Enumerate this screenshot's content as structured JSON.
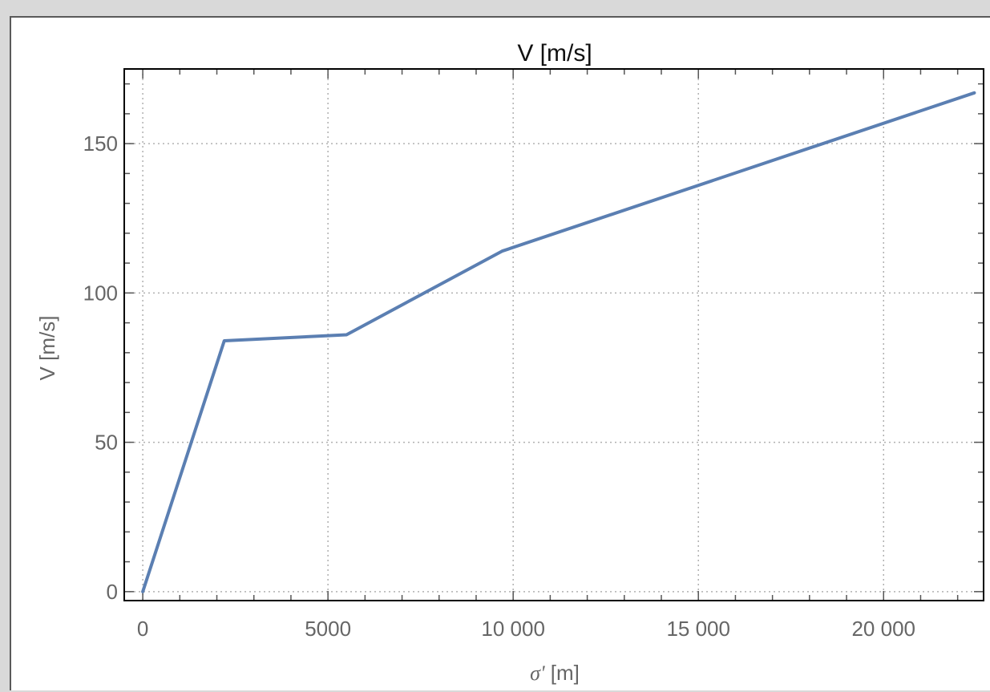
{
  "chart_data": {
    "type": "line",
    "title": "V [m/s]",
    "xlabel_symbol": "σ'",
    "xlabel_unit": " [m]",
    "ylabel": "V [m/s]",
    "xlim": [
      -500,
      22700
    ],
    "ylim": [
      -3,
      175
    ],
    "x_ticks": [
      0,
      5000,
      10000,
      15000,
      20000
    ],
    "x_tick_labels": [
      "0",
      "5000",
      "10 000",
      "15 000",
      "20 000"
    ],
    "y_ticks": [
      0,
      50,
      100,
      150
    ],
    "y_tick_labels": [
      "0",
      "50",
      "100",
      "150"
    ],
    "grid": true,
    "series": [
      {
        "color": "#5b7fb2",
        "x": [
          0,
          2200,
          5500,
          9700,
          22450
        ],
        "y": [
          0,
          84,
          86,
          114,
          167
        ]
      }
    ]
  }
}
